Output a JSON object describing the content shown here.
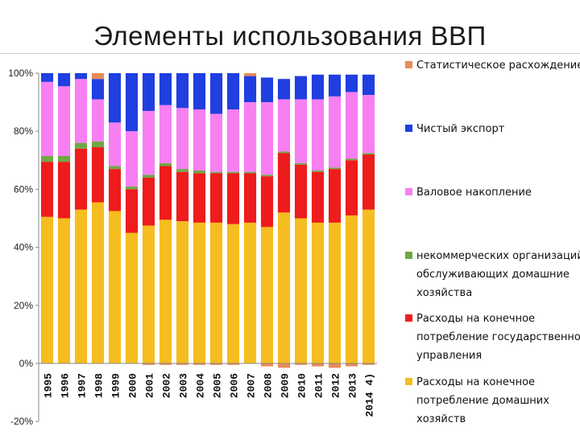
{
  "slide": {
    "title": "Элементы использования ВВП"
  },
  "chart_data": {
    "type": "bar",
    "stacked": true,
    "categories": [
      "1995",
      "1996",
      "1997",
      "1998",
      "1999",
      "2000",
      "2001",
      "2002",
      "2003",
      "2004",
      "2005",
      "2006",
      "2007",
      "2008",
      "2009",
      "2010",
      "2011",
      "2012",
      "2013",
      "2014 4)"
    ],
    "ylim": [
      -20,
      100
    ],
    "yticks": [
      -20,
      0,
      20,
      40,
      60,
      80,
      100
    ],
    "ytick_labels": [
      "-20%",
      "0%",
      "20%",
      "40%",
      "60%",
      "80%",
      "100%"
    ],
    "legend_position": "right",
    "series": [
      {
        "name": "Расходы на конечное потребление домашних хозяйств",
        "color": "#f5bd1f",
        "values": [
          50.5,
          50,
          53,
          55.5,
          52.5,
          45,
          47.5,
          49.5,
          49,
          48.5,
          48.5,
          48,
          48.5,
          47,
          52,
          50,
          48.5,
          48.5,
          51,
          53
        ]
      },
      {
        "name": "Расходы на конечное потребление государственного управления",
        "color": "#ee1c1c",
        "values": [
          19,
          19.5,
          21,
          19,
          14.5,
          15,
          16.5,
          18.5,
          17,
          17,
          17,
          17.5,
          17,
          17.5,
          20.5,
          18.5,
          17.5,
          18.5,
          19,
          19
        ]
      },
      {
        "name": "некоммерческих организаций, обслуживающих домашние хозяйства",
        "color": "#70a845",
        "values": [
          2,
          2,
          2,
          2,
          1,
          1,
          1,
          1,
          1,
          1,
          0.5,
          0.5,
          0.5,
          0.5,
          0.5,
          0.5,
          0.5,
          0.5,
          0.5,
          0.5
        ]
      },
      {
        "name": "Валовое накопление",
        "color": "#f77ff2",
        "values": [
          25.5,
          24,
          22,
          14.5,
          15,
          19,
          22,
          20,
          21,
          21,
          20,
          21.5,
          24,
          25,
          18,
          22,
          24.5,
          24.5,
          23,
          20
        ]
      },
      {
        "name": "Чистый экспорт",
        "color": "#1f3fe0",
        "values": [
          3,
          4.5,
          2,
          7,
          17,
          20,
          13,
          11,
          12,
          12.5,
          14,
          12.5,
          9,
          8.5,
          7,
          8,
          8.5,
          7.5,
          6,
          7
        ]
      },
      {
        "name": "Статистическое расхождение",
        "color": "#e68a5a",
        "values": [
          0,
          0,
          0,
          2,
          0,
          0,
          -0.5,
          -0.5,
          -0.5,
          -0.5,
          -0.5,
          -0.5,
          1,
          -1,
          -1.5,
          -0.5,
          -1,
          -1.5,
          -1,
          -0.5
        ]
      }
    ],
    "legend_labels": [
      {
        "key": "stat",
        "color": "#e68a5a",
        "lines": [
          "Статистическое расхождение"
        ]
      },
      {
        "key": "export",
        "color": "#1f3fe0",
        "lines": [
          "Чистый экспорт"
        ]
      },
      {
        "key": "accum",
        "color": "#f77ff2",
        "lines": [
          "Валовое накопление"
        ]
      },
      {
        "key": "npo",
        "color": "#70a845",
        "lines": [
          "некоммерческих организаций,",
          "обслуживающих домашние",
          "хозяйства"
        ]
      },
      {
        "key": "gov",
        "color": "#ee1c1c",
        "lines": [
          "Расходы на конечное",
          "потребление государственного",
          "управления"
        ]
      },
      {
        "key": "house",
        "color": "#f5bd1f",
        "lines": [
          "Расходы на конечное",
          "потребление домашних",
          "хозяйств"
        ]
      }
    ]
  }
}
